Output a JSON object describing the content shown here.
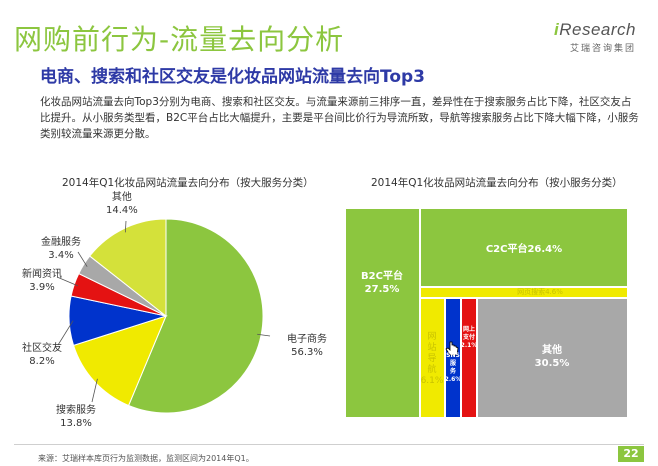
{
  "header": {
    "title": "网购前行为-流量去向分析",
    "subtitle": "电商、搜索和社区交友是化妆品网站流量去向Top3",
    "description": "化妆品网站流量去向Top3分别为电商、搜索和社区交友。与流量来源前三排序一直，差异性在于搜索服务占比下降，社区交友占比提升。从小服务类型看，B2C平台占比大幅提升，主要是平台间比价行为导流所致，导航等搜索服务占比下降大幅下降，小服务类别较流量来源更分散。"
  },
  "logo": {
    "brand_i": "i",
    "brand_rest": "Research",
    "sub": "艾瑞咨询集团"
  },
  "footer": {
    "source": "来源：艾瑞样本库页行为监测数据，监测区间为2014年Q1。",
    "page": "22"
  },
  "colors": {
    "green": "#8cc63f",
    "yellow": "#f0ea00",
    "blue": "#0033cc",
    "red": "#e41212",
    "gray": "#a8a8a8",
    "lime": "#d4e13a",
    "accent_title": "#2e3aa6"
  },
  "chart_data": [
    {
      "type": "pie",
      "title": "2014年Q1化妆品网站流量去向分布（按大服务分类）",
      "slices": [
        {
          "label": "电子商务",
          "value": 56.3,
          "value_label": "56.3%",
          "color": "#8cc63f"
        },
        {
          "label": "搜索服务",
          "value": 13.8,
          "value_label": "13.8%",
          "color": "#f0ea00"
        },
        {
          "label": "社区交友",
          "value": 8.2,
          "value_label": "8.2%",
          "color": "#0033cc"
        },
        {
          "label": "新闻资讯",
          "value": 3.9,
          "value_label": "3.9%",
          "color": "#e41212"
        },
        {
          "label": "金融服务",
          "value": 3.4,
          "value_label": "3.4%",
          "color": "#a8a8a8"
        },
        {
          "label": "其他",
          "value": 14.4,
          "value_label": "14.4%",
          "color": "#d4e13a"
        }
      ]
    },
    {
      "type": "treemap",
      "title": "2014年Q1化妆品网站流量去向分布（按小服务分类）",
      "cells": [
        {
          "label": "B2C平台",
          "value": 27.5,
          "value_label": "27.5%",
          "color": "#8cc63f"
        },
        {
          "label": "C2C平台",
          "value": 26.4,
          "value_label": "26.4%",
          "color": "#8cc63f"
        },
        {
          "label": "网页搜索",
          "value": 4.6,
          "value_label": "4.6%",
          "color": "#f0ea00"
        },
        {
          "label": "网站导航",
          "value": 6.1,
          "value_label": "6.1%",
          "color": "#f0ea00"
        },
        {
          "label": "SNS服务",
          "value": 2.6,
          "value_label": "2.6%",
          "color": "#0033cc"
        },
        {
          "label": "网上支付",
          "value": 2.1,
          "value_label": "2.1%",
          "color": "#e41212"
        },
        {
          "label": "其他",
          "value": 30.5,
          "value_label": "30.5%",
          "color": "#a8a8a8"
        }
      ]
    }
  ]
}
